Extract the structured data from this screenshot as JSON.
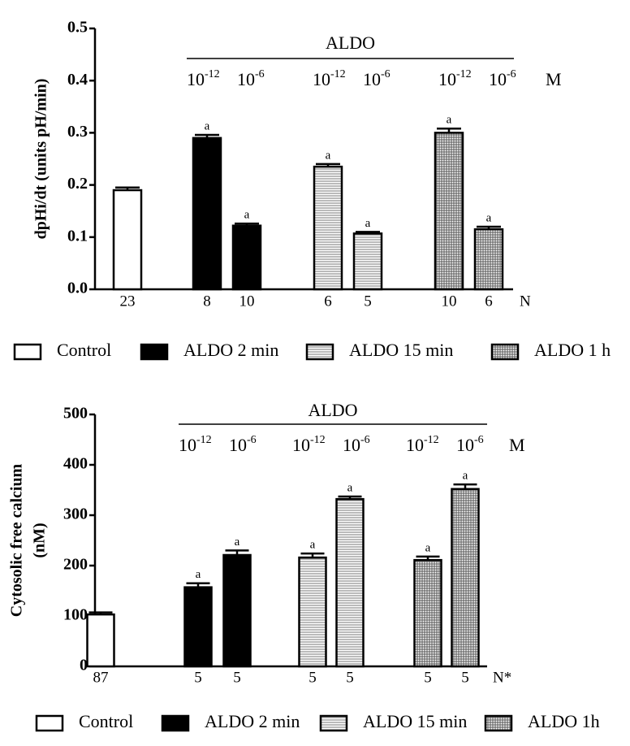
{
  "chart_data": [
    {
      "type": "bar",
      "ylabel": [
        "dpHi/dt (units pH/min)"
      ],
      "group_label": "ALDO",
      "doses": [
        {
          "base": "10",
          "exponent": "-12"
        },
        {
          "base": "10",
          "exponent": "-6"
        }
      ],
      "dose_unit": "M",
      "n_label": "N",
      "ylim": [
        0,
        0.5
      ],
      "yticks": [
        {
          "value": 0,
          "label": "0.0"
        },
        0.1,
        0.2,
        0.3,
        0.4,
        0.5
      ],
      "series": [
        {
          "name": "Control",
          "color": "#ffffff",
          "pattern": "solid",
          "values": [
            0.19
          ],
          "errors": [
            0.005
          ],
          "n": [
            23
          ]
        },
        {
          "name": "ALDO 2 min",
          "color": "#000000",
          "pattern": "solid",
          "values": [
            0.29,
            0.122
          ],
          "errors": [
            0.006,
            0.004
          ],
          "n": [
            8,
            10
          ],
          "annotations": [
            "a",
            "a"
          ]
        },
        {
          "name": "ALDO 15 min",
          "color": "#ffffff",
          "pattern": "horizontal",
          "values": [
            0.235,
            0.107
          ],
          "errors": [
            0.005,
            0.003
          ],
          "n": [
            6,
            5
          ],
          "annotations": [
            "a",
            "a"
          ]
        },
        {
          "name": "ALDO 1 h",
          "color": "#ffffff",
          "pattern": "grid",
          "values": [
            0.3,
            0.115
          ],
          "errors": [
            0.008,
            0.005
          ],
          "n": [
            10,
            6
          ],
          "annotations": [
            "a",
            "a"
          ]
        }
      ]
    },
    {
      "type": "bar",
      "ylabel": [
        "Cytosolic free calcium",
        "(nM)"
      ],
      "group_label": "ALDO",
      "doses": [
        {
          "base": "10",
          "exponent": "-12"
        },
        {
          "base": "10",
          "exponent": "-6"
        }
      ],
      "dose_unit": "M",
      "n_label": "N*",
      "ylim": [
        0,
        500
      ],
      "yticks": [
        0,
        100,
        200,
        300,
        400,
        500
      ],
      "series": [
        {
          "name": "Control",
          "color": "#ffffff",
          "pattern": "solid",
          "values": [
            103
          ],
          "errors": [
            4
          ],
          "n": [
            87
          ]
        },
        {
          "name": "ALDO 2 min",
          "color": "#000000",
          "pattern": "solid",
          "values": [
            157,
            221
          ],
          "errors": [
            8,
            9
          ],
          "n": [
            5,
            5
          ],
          "annotations": [
            "a",
            "a"
          ]
        },
        {
          "name": "ALDO 15 min",
          "color": "#ffffff",
          "pattern": "horizontal",
          "values": [
            216,
            332
          ],
          "errors": [
            8,
            5
          ],
          "n": [
            5,
            5
          ],
          "annotations": [
            "a",
            "a"
          ]
        },
        {
          "name": "ALDO 1h",
          "color": "#ffffff",
          "pattern": "grid",
          "values": [
            211,
            352
          ],
          "errors": [
            7,
            9
          ],
          "n": [
            5,
            5
          ],
          "annotations": [
            "a",
            "a"
          ]
        }
      ]
    }
  ]
}
